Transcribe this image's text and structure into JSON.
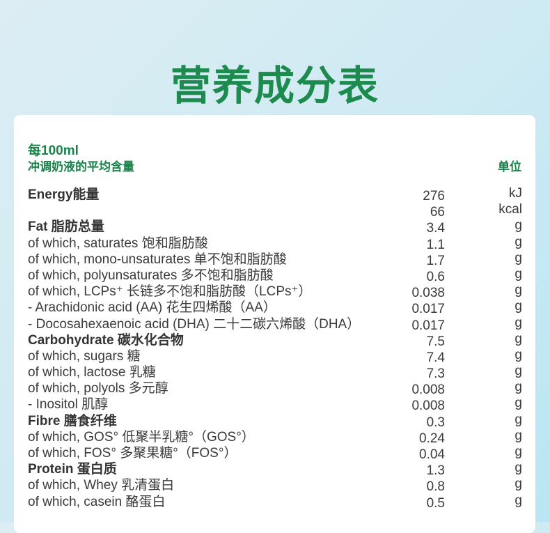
{
  "title": "营养成分表",
  "header": {
    "per": "每100ml",
    "basis": "冲调奶液的平均含量",
    "unit_label": "单位"
  },
  "rows": [
    {
      "label": "Energy能量",
      "value": "276",
      "unit": "kJ",
      "bold": true
    },
    {
      "label": "",
      "value": "66",
      "unit": "kcal",
      "bold": false
    },
    {
      "label": "Fat 脂肪总量",
      "value": "3.4",
      "unit": "g",
      "bold": true
    },
    {
      "label": "of which, saturates 饱和脂肪酸",
      "value": "1.1",
      "unit": "g",
      "bold": false
    },
    {
      "label": "of which, mono-unsaturates 单不饱和脂肪酸",
      "value": "1.7",
      "unit": "g",
      "bold": false
    },
    {
      "label": "of which, polyunsaturates 多不饱和脂肪酸",
      "value": "0.6",
      "unit": "g",
      "bold": false
    },
    {
      "label": "of which, LCPs⁺ 长链多不饱和脂肪酸（LCPs⁺）",
      "value": "0.038",
      "unit": "g",
      "bold": false
    },
    {
      "label": "- Arachidonic acid (AA) 花生四烯酸（AA）",
      "value": "0.017",
      "unit": "g",
      "bold": false
    },
    {
      "label": "- Docosahexaenoic acid (DHA) 二十二碳六烯酸（DHA）",
      "value": "0.017",
      "unit": "g",
      "bold": false
    },
    {
      "label": "Carbohydrate 碳水化合物",
      "value": "7.5",
      "unit": "g",
      "bold": true
    },
    {
      "label": "of which, sugars 糖",
      "value": "7.4",
      "unit": "g",
      "bold": false
    },
    {
      "label": "of which, lactose 乳糖",
      "value": "7.3",
      "unit": "g",
      "bold": false
    },
    {
      "label": "of which, polyols 多元醇",
      "value": "0.008",
      "unit": "g",
      "bold": false
    },
    {
      "label": "- Inositol 肌醇",
      "value": "0.008",
      "unit": "g",
      "bold": false
    },
    {
      "label": "Fibre 膳食纤维",
      "value": "0.3",
      "unit": "g",
      "bold": true
    },
    {
      "label": "of which, GOS° 低聚半乳糖°（GOS°）",
      "value": "0.24",
      "unit": "g",
      "bold": false
    },
    {
      "label": "of which, FOS° 多聚果糖°（FOS°）",
      "value": "0.04",
      "unit": "g",
      "bold": false
    },
    {
      "label": "Protein 蛋白质",
      "value": "1.3",
      "unit": "g",
      "bold": true
    },
    {
      "label": "of which, Whey 乳清蛋白",
      "value": "0.8",
      "unit": "g",
      "bold": false
    },
    {
      "label": "of which, casein 酪蛋白",
      "value": "0.5",
      "unit": "g",
      "bold": false
    }
  ]
}
